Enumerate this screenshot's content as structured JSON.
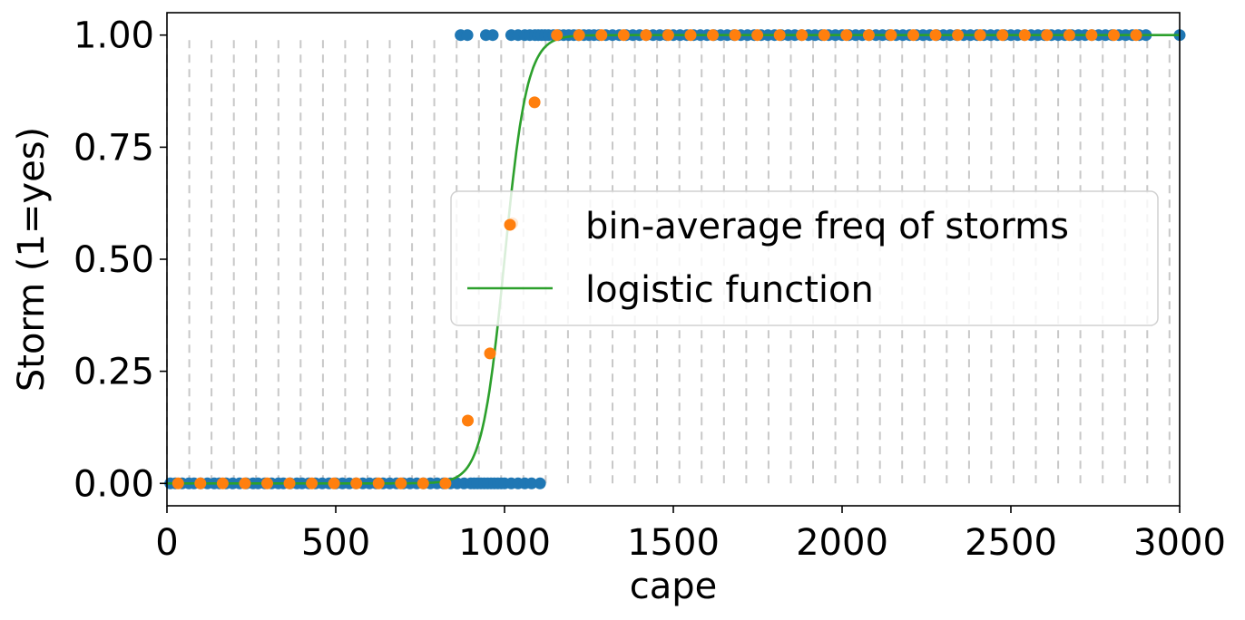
{
  "chart_data": {
    "type": "scatter",
    "title": "",
    "xlabel": "cape",
    "ylabel": "Storm (1=yes)",
    "xlim": [
      0,
      3000
    ],
    "ylim": [
      -0.05,
      1.05
    ],
    "xticks": [
      "0",
      "500",
      "1000",
      "1500",
      "2000",
      "2500",
      "3000"
    ],
    "yticks": [
      "0.00",
      "0.25",
      "0.50",
      "0.75",
      "1.00"
    ],
    "grid": "dashed vertical bin edges",
    "bin_edges": [
      0,
      66,
      132,
      198,
      264,
      330,
      396,
      462,
      528,
      594,
      660,
      726,
      792,
      858,
      924,
      990,
      1056,
      1122,
      1188,
      1254,
      1320,
      1386,
      1452,
      1518,
      1584,
      1650,
      1716,
      1782,
      1848,
      1914,
      1980,
      2046,
      2112,
      2178,
      2244,
      2310,
      2376,
      2442,
      2508,
      2574,
      2640,
      2706,
      2772,
      2838,
      2904,
      2970
    ],
    "raw_no_storm_cape": [
      10,
      25,
      45,
      65,
      80,
      100,
      120,
      140,
      155,
      175,
      195,
      215,
      235,
      255,
      270,
      290,
      310,
      330,
      345,
      365,
      385,
      400,
      420,
      440,
      460,
      480,
      500,
      520,
      540,
      560,
      580,
      600,
      620,
      640,
      660,
      680,
      700,
      720,
      740,
      760,
      780,
      800,
      820,
      840,
      860,
      880,
      900,
      910,
      920,
      930,
      940,
      950,
      960,
      970,
      980,
      990,
      1000,
      1020,
      1040,
      1060,
      1080,
      1105
    ],
    "raw_storm_cape": [
      870,
      890,
      945,
      965,
      1020,
      1040,
      1060,
      1075,
      1090,
      1100,
      1110,
      1120,
      1130,
      1145,
      1160,
      1175,
      1190,
      1205,
      1220,
      1235,
      1250,
      1265,
      1280,
      1300,
      1320,
      1340,
      1360,
      1380,
      1400,
      1420,
      1440,
      1460,
      1480,
      1500,
      1520,
      1540,
      1560,
      1580,
      1600,
      1620,
      1640,
      1660,
      1680,
      1700,
      1720,
      1740,
      1760,
      1780,
      1800,
      1820,
      1840,
      1860,
      1880,
      1900,
      1920,
      1940,
      1960,
      1980,
      2000,
      2020,
      2040,
      2060,
      2080,
      2100,
      2120,
      2140,
      2160,
      2180,
      2200,
      2220,
      2240,
      2260,
      2280,
      2300,
      2320,
      2340,
      2360,
      2380,
      2400,
      2420,
      2440,
      2460,
      2480,
      2500,
      2520,
      2540,
      2560,
      2580,
      2600,
      2620,
      2640,
      2660,
      2680,
      2700,
      2720,
      2740,
      2760,
      2780,
      2800,
      2820,
      2840,
      2860,
      2880,
      2900,
      3000
    ],
    "series": [
      {
        "name": "bin-average freq of storms",
        "marker": "circle",
        "x": [
          33,
          99,
          165,
          231,
          297,
          363,
          429,
          495,
          561,
          627,
          693,
          759,
          825,
          891,
          957,
          1023,
          1089,
          1155,
          1221,
          1287,
          1353,
          1419,
          1485,
          1551,
          1617,
          1683,
          1749,
          1815,
          1881,
          1947,
          2013,
          2079,
          2145,
          2211,
          2277,
          2343,
          2409,
          2475,
          2541,
          2607,
          2673,
          2739,
          2805,
          2871
        ],
        "y": [
          0,
          0,
          0,
          0,
          0,
          0,
          0,
          0,
          0,
          0,
          0,
          0,
          0,
          0.14,
          0.29,
          0.58,
          0.85,
          1,
          1,
          1,
          1,
          1,
          1,
          1,
          1,
          1,
          1,
          1,
          1,
          1,
          1,
          1,
          1,
          1,
          1,
          1,
          1,
          1,
          1,
          1,
          1,
          1,
          1,
          1
        ]
      },
      {
        "name": "logistic function",
        "type": "line",
        "midpoint": 1000,
        "steepness": 0.03
      }
    ],
    "legend": {
      "placement": "center-right",
      "entries": [
        "bin-average freq of storms",
        "logistic function"
      ]
    },
    "colors": {
      "raw_points": "#1f77b4",
      "bin_average": "#ff7f0e",
      "logistic": "#2ca02c",
      "grid": "#c8c8c8"
    }
  }
}
